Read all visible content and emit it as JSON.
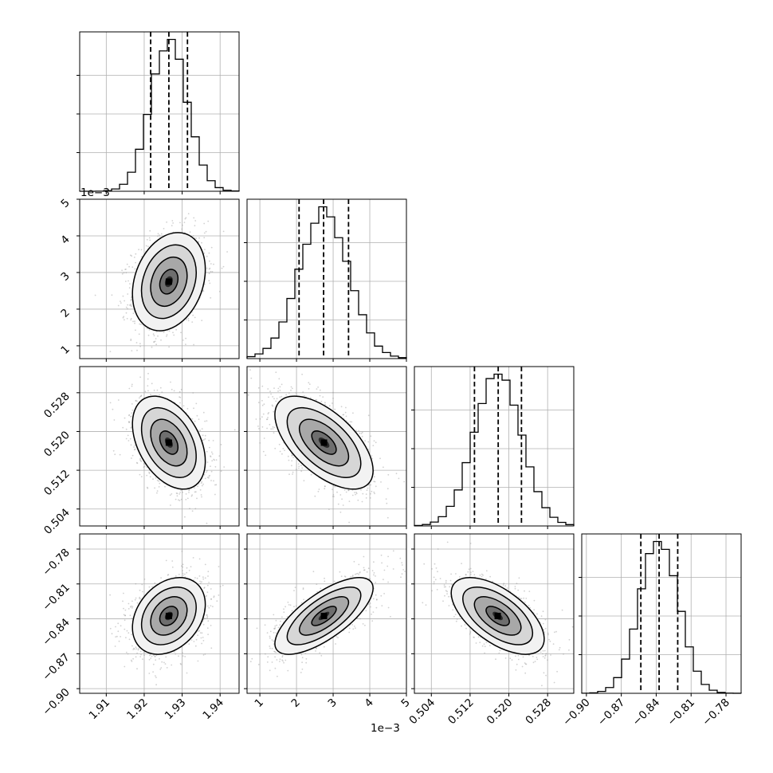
{
  "chart_data": {
    "type": "scatter",
    "figure": "corner",
    "grid": true,
    "colors": {
      "points": "#9a9a9a",
      "contour": "#000000",
      "hist": "#000000",
      "grid": "#b0b0b0"
    },
    "params": [
      {
        "axis_range": [
          1.903,
          1.945
        ],
        "ticks": [
          1.91,
          1.92,
          1.93,
          1.94
        ],
        "tick_labels": [
          "1.91",
          "1.92",
          "1.93",
          "1.94"
        ],
        "mean": 1.9265,
        "sigma": 0.0048,
        "quantiles": [
          1.9217,
          1.9265,
          1.9314
        ],
        "offset_text": ""
      },
      {
        "axis_range": [
          0.65,
          5.0
        ],
        "ticks": [
          1,
          2,
          3,
          4,
          5
        ],
        "tick_labels": [
          "1",
          "2",
          "3",
          "4",
          "5"
        ],
        "mean": 2.75,
        "sigma": 0.67,
        "quantiles": [
          2.07,
          2.74,
          3.42
        ],
        "offset_text": "1e−3"
      },
      {
        "axis_range": [
          0.5005,
          0.5334
        ],
        "ticks": [
          0.504,
          0.512,
          0.52,
          0.528
        ],
        "tick_labels": [
          "0.504",
          "0.512",
          "0.520",
          "0.528"
        ],
        "mean": 0.5177,
        "sigma": 0.0048,
        "quantiles": [
          0.5129,
          0.5178,
          0.5226
        ],
        "offset_text": ""
      },
      {
        "axis_range": [
          -0.904,
          -0.767
        ],
        "ticks": [
          -0.9,
          -0.87,
          -0.84,
          -0.81,
          -0.78
        ],
        "tick_labels": [
          "−0.90",
          "−0.87",
          "−0.84",
          "−0.81",
          "−0.78"
        ],
        "mean": -0.8375,
        "sigma": 0.0165,
        "quantiles": [
          -0.8532,
          -0.8375,
          -0.8215
        ],
        "offset_text": ""
      }
    ],
    "correlations": [
      {
        "i": 1,
        "j": 0,
        "rho": 0.25
      },
      {
        "i": 2,
        "j": 0,
        "rho": -0.4
      },
      {
        "i": 2,
        "j": 1,
        "rho": -0.6
      },
      {
        "i": 3,
        "j": 0,
        "rho": 0.3
      },
      {
        "i": 3,
        "j": 1,
        "rho": 0.72
      },
      {
        "i": 3,
        "j": 2,
        "rho": -0.6
      }
    ],
    "contour_levels_sigma": [
      0.5,
      1.0,
      1.5,
      2.0
    ],
    "histogram_bins": 20
  }
}
